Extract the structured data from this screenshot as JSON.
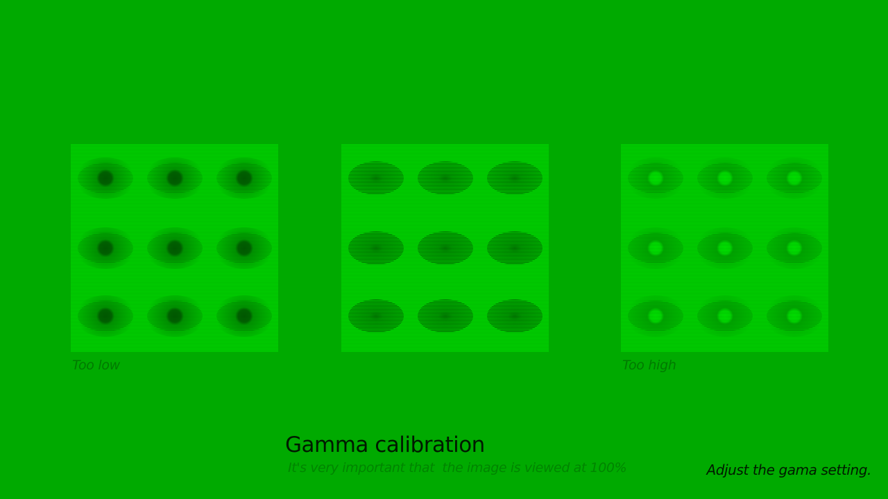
{
  "background_color": "#00aa00",
  "panels": [
    {
      "id": "too-low",
      "label": "Too low",
      "variant": "dark"
    },
    {
      "id": "correct",
      "label": "",
      "variant": "balanced"
    },
    {
      "id": "too-high",
      "label": "Too high",
      "variant": "light"
    }
  ],
  "labels": {
    "too_low": "Too low",
    "too_high": "Too high"
  },
  "footer": {
    "title": "Gamma calibration",
    "subtitle": "It's very important that  the image is viewed at 100%",
    "hint": "Adjust the gama setting."
  }
}
